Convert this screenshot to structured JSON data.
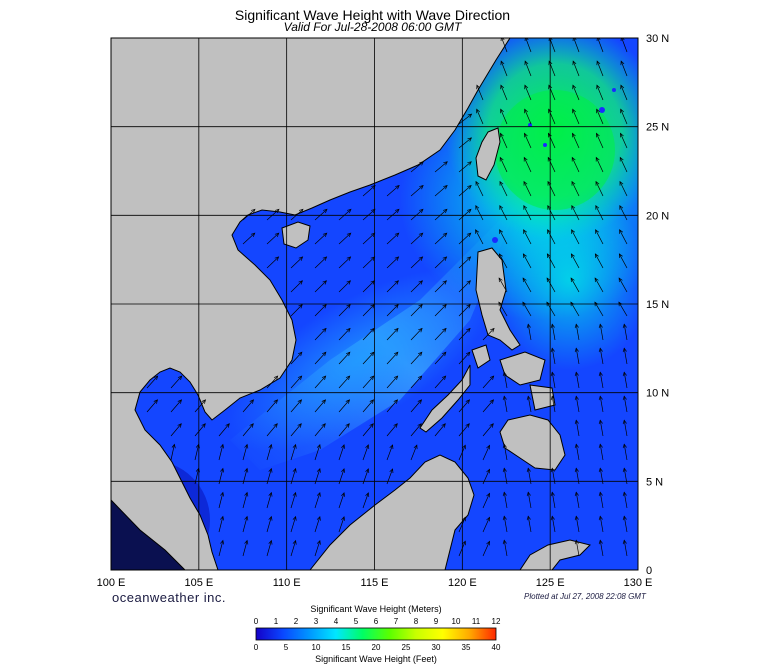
{
  "title": "Significant Wave Height with Wave Direction",
  "subtitle": "Valid For Jul-28-2008 06:00 GMT",
  "logo_text": "oceanweather inc.",
  "plotted_text": "Plotted at Jul 27, 2008 22:08 GMT",
  "map": {
    "lon_range": [
      100,
      130
    ],
    "lat_range": [
      0,
      30
    ],
    "lon_labels": [
      "100 E",
      "105 E",
      "110 E",
      "115 E",
      "120 E",
      "125 E",
      "130 E"
    ],
    "lat_labels": [
      "30 N",
      "25 N",
      "20 N",
      "15 N",
      "10 N",
      "5 N",
      "0"
    ],
    "land_color": "#c0c0c0",
    "grid_color": "#000000",
    "arrow_color": "#000000",
    "wave_direction": "towards north-east"
  },
  "colorbar": {
    "title_meters": "Significant Wave Height (Meters)",
    "title_feet": "Significant Wave Height (Feet)",
    "meters_ticks": [
      "0",
      "1",
      "2",
      "3",
      "4",
      "5",
      "6",
      "7",
      "8",
      "9",
      "10",
      "11",
      "12"
    ],
    "feet_ticks": [
      "0",
      "5",
      "10",
      "15",
      "20",
      "25",
      "30",
      "35",
      "40"
    ],
    "colors": [
      "#1400c8",
      "#0a46ff",
      "#0096ff",
      "#00e6ff",
      "#00ff64",
      "#5aff00",
      "#c8ff00",
      "#ffff00",
      "#ffaa00",
      "#ff2800"
    ]
  }
}
